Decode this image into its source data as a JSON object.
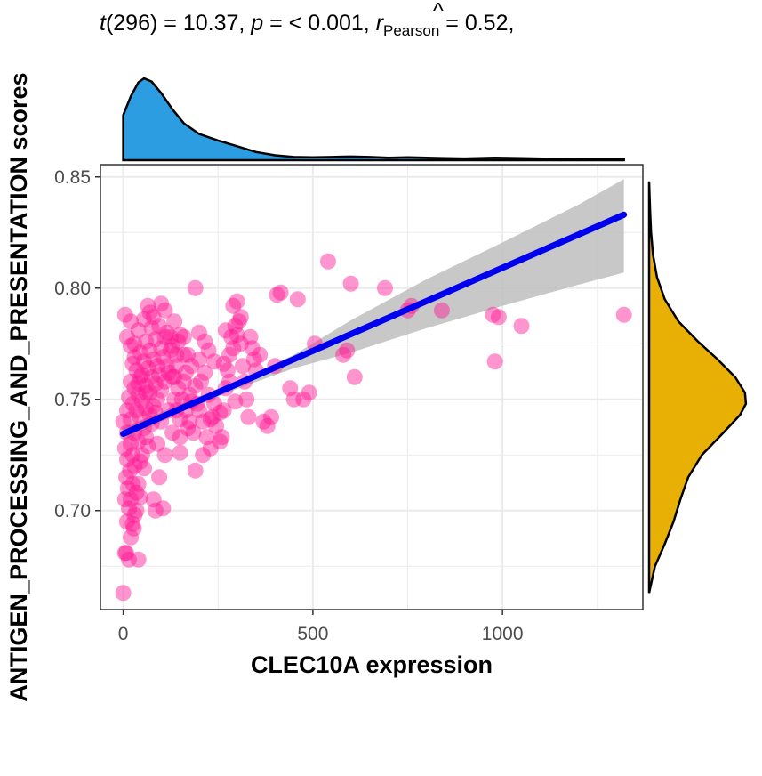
{
  "chart_data": {
    "type": "scatter",
    "subtitle": {
      "t_label": "t",
      "t_df": "(296)",
      "t_value": " = 10.37, ",
      "p_label": "p",
      "p_value": " = < 0.001, ",
      "r_label": "r",
      "r_hat": "^",
      "r_sub": "Pearson",
      "r_value": " = 0.52,"
    },
    "xlabel": "CLEC10A expression",
    "ylabel": "ANTIGEN_PROCESSING_AND_PRESENTATION scores",
    "xlim": [
      -60,
      1370
    ],
    "ylim": [
      0.6555,
      0.8555
    ],
    "xticks": [
      {
        "value": 0,
        "label": "0"
      },
      {
        "value": 500,
        "label": "500"
      },
      {
        "value": 1000,
        "label": "1000"
      }
    ],
    "yticks": [
      {
        "value": 0.7,
        "label": "0.70"
      },
      {
        "value": 0.75,
        "label": "0.75"
      },
      {
        "value": 0.8,
        "label": "0.80"
      },
      {
        "value": 0.85,
        "label": "0.85"
      }
    ],
    "grid": true,
    "colors": {
      "points": "#ff1493",
      "fit_line": "#0000ee",
      "confidence_band": "#bebebe",
      "x_density_fill": "#2b9de0",
      "y_density_fill": "#e8b004",
      "grid": "#ebebeb",
      "panel_border": "#333333"
    },
    "fit": {
      "x_start": 0,
      "y_start": 0.7345,
      "x_end": 1320,
      "y_end": 0.833
    },
    "confidence_band": [
      {
        "x": 0,
        "lower": 0.7315,
        "upper": 0.7375
      },
      {
        "x": 150,
        "lower": 0.744,
        "upper": 0.7476
      },
      {
        "x": 300,
        "lower": 0.7548,
        "upper": 0.7582
      },
      {
        "x": 450,
        "lower": 0.764,
        "upper": 0.77
      },
      {
        "x": 600,
        "lower": 0.771,
        "upper": 0.7855
      },
      {
        "x": 800,
        "lower": 0.782,
        "upper": 0.804
      },
      {
        "x": 1000,
        "lower": 0.792,
        "upper": 0.8205
      },
      {
        "x": 1200,
        "lower": 0.8015,
        "upper": 0.8375
      },
      {
        "x": 1320,
        "lower": 0.807,
        "upper": 0.849
      }
    ],
    "x_density": [
      {
        "x": 0,
        "d": 0.55
      },
      {
        "x": 20,
        "d": 0.78
      },
      {
        "x": 40,
        "d": 0.95
      },
      {
        "x": 55,
        "d": 1.0
      },
      {
        "x": 75,
        "d": 0.96
      },
      {
        "x": 100,
        "d": 0.82
      },
      {
        "x": 130,
        "d": 0.62
      },
      {
        "x": 160,
        "d": 0.45
      },
      {
        "x": 200,
        "d": 0.32
      },
      {
        "x": 250,
        "d": 0.24
      },
      {
        "x": 300,
        "d": 0.17
      },
      {
        "x": 350,
        "d": 0.1
      },
      {
        "x": 400,
        "d": 0.06
      },
      {
        "x": 450,
        "d": 0.04
      },
      {
        "x": 500,
        "d": 0.035
      },
      {
        "x": 550,
        "d": 0.04
      },
      {
        "x": 600,
        "d": 0.045
      },
      {
        "x": 650,
        "d": 0.04
      },
      {
        "x": 700,
        "d": 0.03
      },
      {
        "x": 750,
        "d": 0.035
      },
      {
        "x": 800,
        "d": 0.03
      },
      {
        "x": 850,
        "d": 0.025
      },
      {
        "x": 900,
        "d": 0.02
      },
      {
        "x": 980,
        "d": 0.03
      },
      {
        "x": 1050,
        "d": 0.025
      },
      {
        "x": 1150,
        "d": 0.015
      },
      {
        "x": 1250,
        "d": 0.01
      },
      {
        "x": 1320,
        "d": 0.01
      }
    ],
    "y_density": [
      {
        "y": 0.663,
        "d": 0.0
      },
      {
        "y": 0.675,
        "d": 0.06
      },
      {
        "y": 0.685,
        "d": 0.16
      },
      {
        "y": 0.695,
        "d": 0.25
      },
      {
        "y": 0.705,
        "d": 0.32
      },
      {
        "y": 0.715,
        "d": 0.4
      },
      {
        "y": 0.725,
        "d": 0.54
      },
      {
        "y": 0.735,
        "d": 0.76
      },
      {
        "y": 0.743,
        "d": 0.93
      },
      {
        "y": 0.748,
        "d": 0.99
      },
      {
        "y": 0.753,
        "d": 0.98
      },
      {
        "y": 0.76,
        "d": 0.88
      },
      {
        "y": 0.768,
        "d": 0.7
      },
      {
        "y": 0.776,
        "d": 0.5
      },
      {
        "y": 0.785,
        "d": 0.3
      },
      {
        "y": 0.795,
        "d": 0.16
      },
      {
        "y": 0.805,
        "d": 0.08
      },
      {
        "y": 0.815,
        "d": 0.04
      },
      {
        "y": 0.825,
        "d": 0.02
      },
      {
        "y": 0.835,
        "d": 0.01
      },
      {
        "y": 0.848,
        "d": 0.0
      }
    ],
    "points": [
      [
        0,
        0.663
      ],
      [
        5,
        0.681
      ],
      [
        8,
        0.681
      ],
      [
        15,
        0.678
      ],
      [
        40,
        0.678
      ],
      [
        20,
        0.688
      ],
      [
        25,
        0.694
      ],
      [
        10,
        0.695
      ],
      [
        30,
        0.698
      ],
      [
        5,
        0.705
      ],
      [
        20,
        0.705
      ],
      [
        35,
        0.708
      ],
      [
        12,
        0.71
      ],
      [
        25,
        0.712
      ],
      [
        40,
        0.712
      ],
      [
        8,
        0.715
      ],
      [
        18,
        0.718
      ],
      [
        30,
        0.72
      ],
      [
        45,
        0.722
      ],
      [
        10,
        0.723
      ],
      [
        25,
        0.725
      ],
      [
        50,
        0.725
      ],
      [
        5,
        0.728
      ],
      [
        20,
        0.73
      ],
      [
        40,
        0.731
      ],
      [
        60,
        0.733
      ],
      [
        10,
        0.735
      ],
      [
        30,
        0.735
      ],
      [
        55,
        0.737
      ],
      [
        0,
        0.74
      ],
      [
        20,
        0.741
      ],
      [
        45,
        0.742
      ],
      [
        70,
        0.743
      ],
      [
        10,
        0.745
      ],
      [
        35,
        0.745
      ],
      [
        60,
        0.746
      ],
      [
        80,
        0.747
      ],
      [
        25,
        0.748
      ],
      [
        50,
        0.749
      ],
      [
        90,
        0.75
      ],
      [
        15,
        0.751
      ],
      [
        40,
        0.752
      ],
      [
        70,
        0.753
      ],
      [
        100,
        0.754
      ],
      [
        30,
        0.755
      ],
      [
        60,
        0.756
      ],
      [
        85,
        0.757
      ],
      [
        110,
        0.758
      ],
      [
        20,
        0.758
      ],
      [
        45,
        0.76
      ],
      [
        75,
        0.76
      ],
      [
        95,
        0.761
      ],
      [
        120,
        0.762
      ],
      [
        35,
        0.763
      ],
      [
        65,
        0.764
      ],
      [
        90,
        0.765
      ],
      [
        140,
        0.765
      ],
      [
        25,
        0.766
      ],
      [
        55,
        0.767
      ],
      [
        80,
        0.768
      ],
      [
        105,
        0.769
      ],
      [
        160,
        0.77
      ],
      [
        45,
        0.771
      ],
      [
        70,
        0.772
      ],
      [
        100,
        0.773
      ],
      [
        130,
        0.774
      ],
      [
        30,
        0.775
      ],
      [
        60,
        0.776
      ],
      [
        85,
        0.777
      ],
      [
        110,
        0.778
      ],
      [
        150,
        0.779
      ],
      [
        200,
        0.78
      ],
      [
        40,
        0.781
      ],
      [
        75,
        0.782
      ],
      [
        95,
        0.783
      ],
      [
        20,
        0.785
      ],
      [
        55,
        0.786
      ],
      [
        80,
        0.787
      ],
      [
        5,
        0.788
      ],
      [
        70,
        0.789
      ],
      [
        110,
        0.79
      ],
      [
        65,
        0.792
      ],
      [
        100,
        0.793
      ],
      [
        190,
        0.8
      ],
      [
        115,
        0.765
      ],
      [
        125,
        0.772
      ],
      [
        135,
        0.76
      ],
      [
        145,
        0.755
      ],
      [
        155,
        0.75
      ],
      [
        165,
        0.745
      ],
      [
        175,
        0.74
      ],
      [
        185,
        0.735
      ],
      [
        195,
        0.748
      ],
      [
        205,
        0.758
      ],
      [
        215,
        0.762
      ],
      [
        225,
        0.752
      ],
      [
        235,
        0.742
      ],
      [
        245,
        0.738
      ],
      [
        255,
        0.731
      ],
      [
        130,
        0.735
      ],
      [
        140,
        0.745
      ],
      [
        150,
        0.733
      ],
      [
        160,
        0.778
      ],
      [
        170,
        0.77
      ],
      [
        180,
        0.765
      ],
      [
        190,
        0.756
      ],
      [
        200,
        0.745
      ],
      [
        210,
        0.74
      ],
      [
        220,
        0.733
      ],
      [
        230,
        0.728
      ],
      [
        240,
        0.767
      ],
      [
        120,
        0.745
      ],
      [
        100,
        0.74
      ],
      [
        90,
        0.73
      ],
      [
        110,
        0.725
      ],
      [
        95,
        0.715
      ],
      [
        80,
        0.705
      ],
      [
        85,
        0.7
      ],
      [
        105,
        0.701
      ],
      [
        115,
        0.78
      ],
      [
        125,
        0.778
      ],
      [
        135,
        0.785
      ],
      [
        145,
        0.776
      ],
      [
        160,
        0.758
      ],
      [
        175,
        0.752
      ],
      [
        190,
        0.718
      ],
      [
        210,
        0.725
      ],
      [
        225,
        0.772
      ],
      [
        260,
        0.733
      ],
      [
        265,
        0.745
      ],
      [
        270,
        0.755
      ],
      [
        275,
        0.763
      ],
      [
        280,
        0.77
      ],
      [
        285,
        0.778
      ],
      [
        290,
        0.792
      ],
      [
        295,
        0.783
      ],
      [
        300,
        0.794
      ],
      [
        305,
        0.785
      ],
      [
        310,
        0.775
      ],
      [
        315,
        0.765
      ],
      [
        320,
        0.758
      ],
      [
        325,
        0.75
      ],
      [
        330,
        0.742
      ],
      [
        335,
        0.778
      ],
      [
        340,
        0.773
      ],
      [
        345,
        0.768
      ],
      [
        350,
        0.763
      ],
      [
        360,
        0.77
      ],
      [
        370,
        0.74
      ],
      [
        380,
        0.738
      ],
      [
        390,
        0.742
      ],
      [
        400,
        0.765
      ],
      [
        405,
        0.797
      ],
      [
        415,
        0.798
      ],
      [
        440,
        0.755
      ],
      [
        450,
        0.75
      ],
      [
        460,
        0.795
      ],
      [
        475,
        0.75
      ],
      [
        490,
        0.753
      ],
      [
        505,
        0.775
      ],
      [
        540,
        0.812
      ],
      [
        580,
        0.77
      ],
      [
        590,
        0.772
      ],
      [
        600,
        0.802
      ],
      [
        610,
        0.76
      ],
      [
        690,
        0.8
      ],
      [
        750,
        0.79
      ],
      [
        760,
        0.792
      ],
      [
        840,
        0.79
      ],
      [
        975,
        0.788
      ],
      [
        990,
        0.787
      ],
      [
        980,
        0.767
      ],
      [
        1050,
        0.783
      ],
      [
        1320,
        0.788
      ],
      [
        270,
        0.781
      ],
      [
        290,
        0.773
      ],
      [
        300,
        0.779
      ],
      [
        310,
        0.787
      ],
      [
        255,
        0.744
      ],
      [
        265,
        0.766
      ],
      [
        280,
        0.758
      ],
      [
        295,
        0.749
      ],
      [
        230,
        0.741
      ],
      [
        240,
        0.748
      ],
      [
        65,
        0.729
      ],
      [
        75,
        0.739
      ],
      [
        85,
        0.744
      ],
      [
        55,
        0.719
      ],
      [
        45,
        0.706
      ],
      [
        35,
        0.7
      ],
      [
        28,
        0.692
      ],
      [
        15,
        0.701
      ],
      [
        60,
        0.753
      ],
      [
        50,
        0.761
      ],
      [
        40,
        0.757
      ],
      [
        30,
        0.769
      ],
      [
        20,
        0.774
      ],
      [
        10,
        0.778
      ],
      [
        130,
        0.76
      ],
      [
        140,
        0.77
      ],
      [
        150,
        0.741
      ],
      [
        165,
        0.762
      ],
      [
        180,
        0.749
      ],
      [
        200,
        0.768
      ],
      [
        215,
        0.776
      ],
      [
        170,
        0.737
      ],
      [
        150,
        0.726
      ],
      [
        135,
        0.75
      ]
    ]
  }
}
